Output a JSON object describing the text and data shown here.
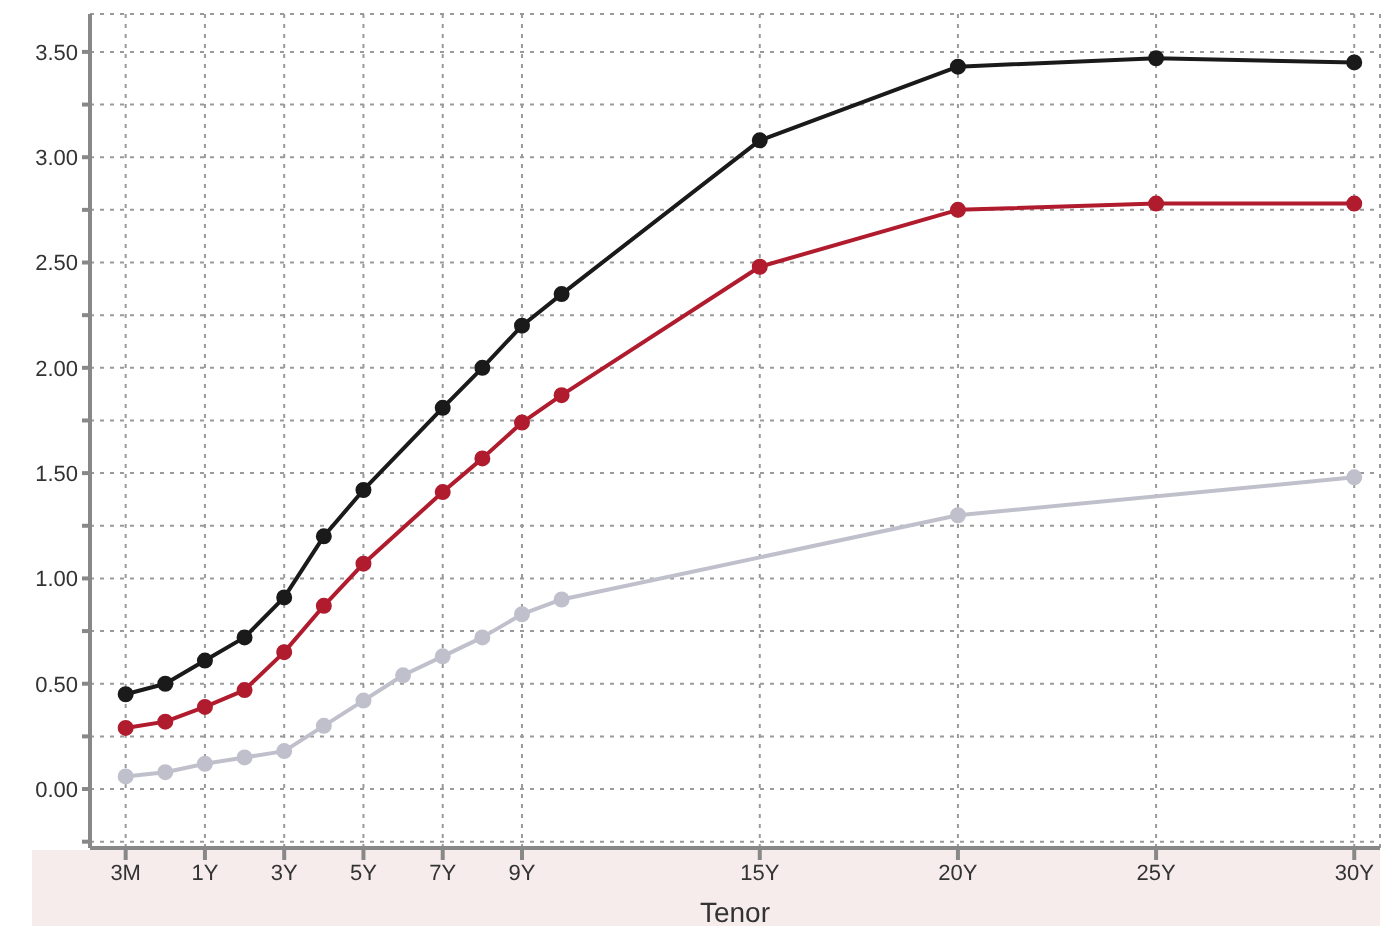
{
  "chart_data": {
    "type": "line",
    "xlabel": "Tenor",
    "categories": [
      "3M",
      null,
      "1Y",
      null,
      "3Y",
      null,
      "5Y",
      null,
      "7Y",
      null,
      "9Y",
      null,
      null,
      null,
      null,
      null,
      "15Y",
      null,
      null,
      null,
      null,
      "20Y",
      null,
      null,
      null,
      null,
      "25Y",
      null,
      null,
      null,
      null,
      "30Y"
    ],
    "series": [
      {
        "color": "#1a1a1a",
        "values": [
          0.45,
          0.5,
          0.61,
          0.72,
          0.91,
          1.2,
          1.42,
          null,
          1.81,
          2.0,
          2.2,
          2.35,
          null,
          null,
          null,
          null,
          3.08,
          null,
          null,
          null,
          null,
          3.43,
          null,
          null,
          null,
          null,
          3.47,
          null,
          null,
          null,
          null,
          3.45
        ]
      },
      {
        "color": "#b01c2e",
        "values": [
          0.29,
          0.32,
          0.39,
          0.47,
          0.65,
          0.87,
          1.07,
          null,
          1.41,
          1.57,
          1.74,
          1.87,
          null,
          null,
          null,
          null,
          2.48,
          null,
          null,
          null,
          null,
          2.75,
          null,
          null,
          null,
          null,
          2.78,
          null,
          null,
          null,
          null,
          2.78
        ]
      },
      {
        "color": "#c0c0cc",
        "values": [
          0.06,
          0.08,
          0.12,
          0.15,
          0.18,
          0.3,
          0.42,
          0.54,
          0.63,
          0.72,
          0.83,
          0.9,
          null,
          null,
          null,
          null,
          null,
          null,
          null,
          null,
          null,
          1.3,
          null,
          null,
          null,
          null,
          null,
          null,
          null,
          null,
          null,
          1.48
        ]
      }
    ],
    "ylim": [
      -0.28,
      3.68
    ],
    "yticks": [
      {
        "value": -0.25,
        "label": null
      },
      {
        "value": 0,
        "label": "0.00"
      },
      {
        "value": 0.25,
        "label": null
      },
      {
        "value": 0.5,
        "label": "0.50"
      },
      {
        "value": 0.75,
        "label": null
      },
      {
        "value": 1,
        "label": "1.00"
      },
      {
        "value": 1.25,
        "label": null
      },
      {
        "value": 1.5,
        "label": "1.50"
      },
      {
        "value": 1.75,
        "label": null
      },
      {
        "value": 2,
        "label": "2.00"
      },
      {
        "value": 2.25,
        "label": null
      },
      {
        "value": 2.5,
        "label": "2.50"
      },
      {
        "value": 2.75,
        "label": null
      },
      {
        "value": 3,
        "label": "3.00"
      },
      {
        "value": 3.25,
        "label": null
      },
      {
        "value": 3.5,
        "label": "3.50"
      }
    ],
    "grid": true,
    "marker": "circle",
    "line_style": "solid"
  }
}
